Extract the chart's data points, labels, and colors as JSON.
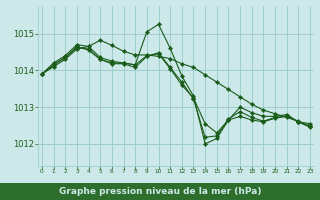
{
  "bg_color": "#cde8e8",
  "plot_bg_color": "#cde8e8",
  "bottom_bar_color": "#2d6e2d",
  "grid_color": "#9ecece",
  "line_color": "#1a5c1a",
  "marker_color": "#1a5c1a",
  "xlabel": "Graphe pression niveau de la mer (hPa)",
  "xlabel_fontsize": 6.5,
  "xlabel_color": "#cde8e8",
  "xtick_labels": [
    "0",
    "1",
    "2",
    "3",
    "4",
    "5",
    "6",
    "7",
    "8",
    "9",
    "10",
    "11",
    "12",
    "13",
    "14",
    "15",
    "16",
    "17",
    "18",
    "19",
    "20",
    "21",
    "22",
    "23"
  ],
  "ytick_fontsize": 6,
  "xtick_fontsize": 4.2,
  "yticks": [
    1012,
    1013,
    1014,
    1015
  ],
  "ylim": [
    1011.4,
    1015.75
  ],
  "xlim": [
    -0.3,
    23.3
  ],
  "series": [
    [
      1013.9,
      1014.2,
      1014.4,
      1014.7,
      1014.65,
      1014.35,
      1014.25,
      1014.2,
      1014.15,
      1015.05,
      1015.25,
      1014.6,
      1013.85,
      1013.3,
      1012.0,
      1012.15,
      1012.65,
      1013.0,
      1012.85,
      1012.75,
      1012.75,
      1012.8,
      1012.6,
      1012.55
    ],
    [
      1013.9,
      1014.15,
      1014.35,
      1014.65,
      1014.55,
      1014.3,
      1014.2,
      1014.2,
      1014.15,
      1014.4,
      1014.45,
      1014.05,
      1013.6,
      1013.25,
      1012.55,
      1012.3,
      1012.65,
      1012.75,
      1012.65,
      1012.6,
      1012.7,
      1012.75,
      1012.6,
      1012.45
    ],
    [
      1013.9,
      1014.1,
      1014.3,
      1014.58,
      1014.65,
      1014.82,
      1014.68,
      1014.52,
      1014.42,
      1014.42,
      1014.38,
      1014.32,
      1014.18,
      1014.08,
      1013.88,
      1013.68,
      1013.48,
      1013.28,
      1013.08,
      1012.92,
      1012.82,
      1012.72,
      1012.62,
      1012.48
    ],
    [
      1013.9,
      1014.15,
      1014.35,
      1014.62,
      1014.58,
      1014.3,
      1014.18,
      1014.18,
      1014.08,
      1014.38,
      1014.48,
      1014.08,
      1013.68,
      1013.22,
      1012.18,
      1012.22,
      1012.68,
      1012.88,
      1012.72,
      1012.62,
      1012.72,
      1012.76,
      1012.6,
      1012.48
    ]
  ]
}
